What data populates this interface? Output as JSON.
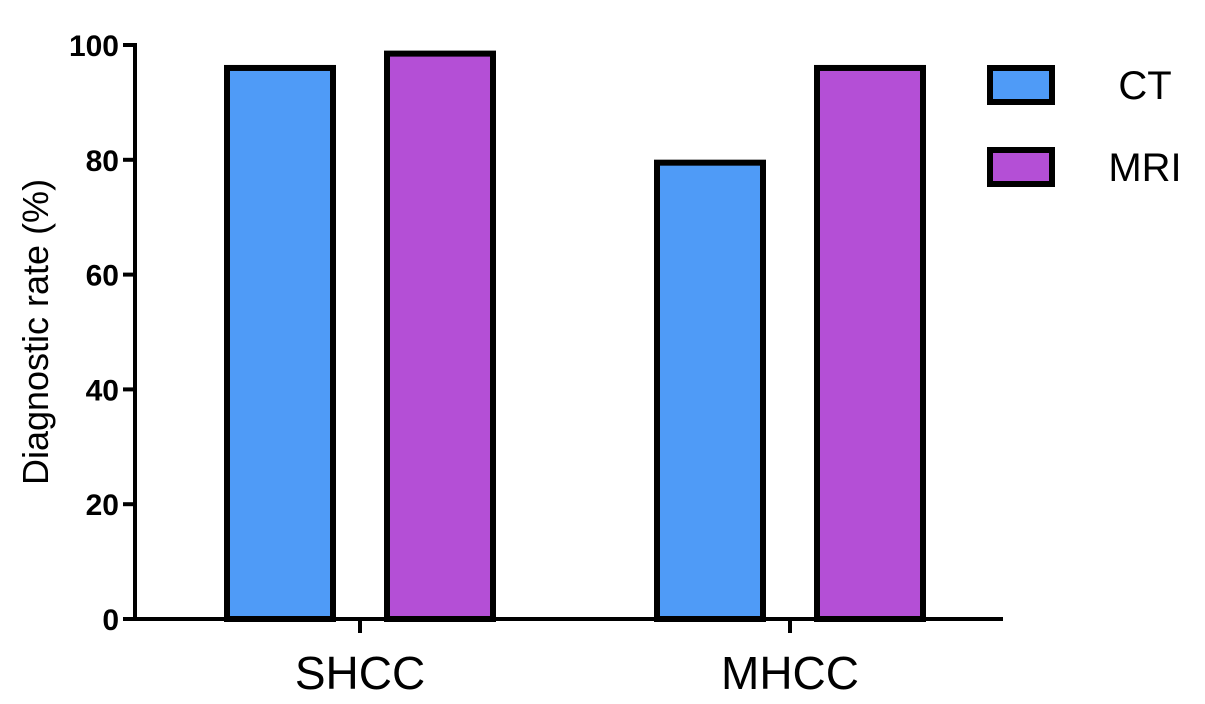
{
  "chart_data": {
    "type": "bar",
    "title": "",
    "xlabel": "",
    "ylabel": "Diagnostic rate (%)",
    "categories": [
      "SHCC",
      "MHCC"
    ],
    "ylim": [
      0,
      100
    ],
    "yticks": [
      0,
      20,
      40,
      60,
      80,
      100
    ],
    "grid": false,
    "legend_position": "top-right",
    "series": [
      {
        "name": "CT",
        "color": "#4f9bf7",
        "values": [
          96,
          79.5
        ]
      },
      {
        "name": "MRI",
        "color": "#b44fd6",
        "values": [
          98.5,
          96
        ]
      }
    ]
  }
}
